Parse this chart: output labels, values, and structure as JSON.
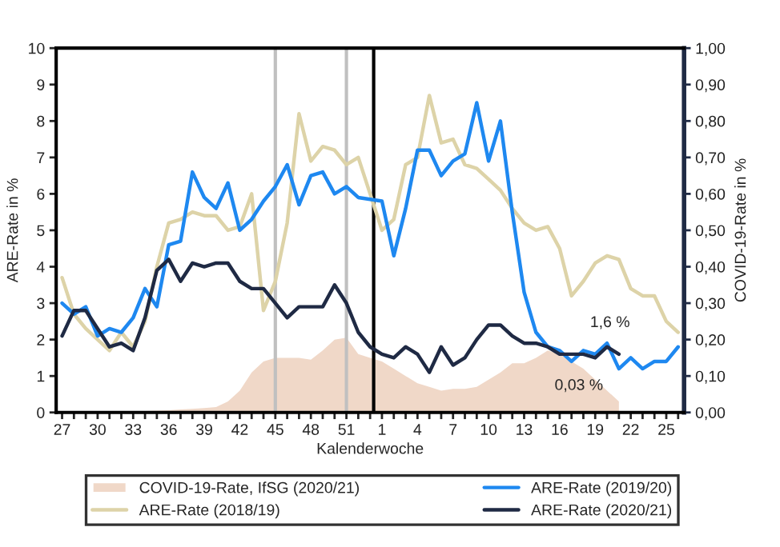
{
  "chart_data": {
    "type": "line",
    "categories": [
      "27",
      null,
      null,
      "30",
      null,
      null,
      "33",
      null,
      null,
      "36",
      null,
      null,
      "39",
      null,
      null,
      "42",
      null,
      null,
      "45",
      null,
      null,
      "48",
      null,
      null,
      "51",
      null,
      null,
      "1",
      null,
      null,
      "4",
      null,
      null,
      "7",
      null,
      null,
      "10",
      null,
      null,
      "13",
      null,
      null,
      "16",
      null,
      null,
      "19",
      null,
      null,
      "22",
      null,
      null,
      "25",
      null
    ],
    "xlabel": "Kalenderwoche",
    "ylabel": "ARE-Rate in %",
    "y2label": "COVID-19-Rate in %",
    "ylim": [
      0,
      10
    ],
    "yticks": [
      0,
      1,
      2,
      3,
      4,
      5,
      6,
      7,
      8,
      9,
      10
    ],
    "y2lim": [
      0,
      1
    ],
    "y2ticks": [
      {
        "value": 0,
        "label": "0,00"
      },
      {
        "value": 0.1,
        "label": "0,10"
      },
      {
        "value": 0.2,
        "label": "0,20"
      },
      {
        "value": 0.3,
        "label": "0,30"
      },
      {
        "value": 0.4,
        "label": "0,40"
      },
      {
        "value": 0.5,
        "label": "0,50"
      },
      {
        "value": 0.6,
        "label": "0,60"
      },
      {
        "value": 0.7,
        "label": "0,70"
      },
      {
        "value": 0.8,
        "label": "0,80"
      },
      {
        "value": 0.9,
        "label": "0,90"
      },
      {
        "value": 1,
        "label": "1,00"
      }
    ],
    "series": [
      {
        "name": "COVID-19-Rate, IfSG (2020/21)",
        "type": "area",
        "axis": "y2",
        "color": "#f0d8c8",
        "values": [
          0.0,
          0.0,
          0.0,
          0.0,
          0.0,
          0.002,
          0.003,
          0.004,
          0.005,
          0.006,
          0.008,
          0.01,
          0.012,
          0.015,
          0.03,
          0.06,
          0.11,
          0.14,
          0.15,
          0.15,
          0.15,
          0.145,
          0.17,
          0.2,
          0.205,
          0.16,
          0.15,
          0.14,
          0.12,
          0.1,
          0.08,
          0.07,
          0.06,
          0.065,
          0.065,
          0.07,
          0.09,
          0.11,
          0.135,
          0.135,
          0.15,
          0.17,
          0.16,
          0.14,
          0.12,
          0.09,
          0.06,
          0.03,
          null,
          null,
          null,
          null,
          null
        ]
      },
      {
        "name": "ARE-Rate (2018/19)",
        "color": "#ddd3a8",
        "values": [
          3.7,
          2.7,
          2.3,
          2.0,
          1.7,
          2.2,
          1.8,
          2.5,
          4.0,
          5.2,
          5.3,
          5.5,
          5.4,
          5.4,
          5.0,
          5.1,
          6.0,
          2.8,
          3.6,
          5.2,
          8.2,
          6.9,
          7.3,
          7.2,
          6.8,
          7.0,
          6.0,
          5.0,
          5.3,
          6.8,
          7.0,
          8.7,
          7.4,
          7.5,
          6.8,
          6.7,
          6.4,
          6.1,
          5.6,
          5.2,
          5.0,
          5.1,
          4.5,
          3.2,
          3.6,
          4.1,
          4.3,
          4.2,
          3.4,
          3.2,
          3.2,
          2.5,
          2.2
        ]
      },
      {
        "name": "ARE-Rate (2019/20)",
        "color": "#1e88f0",
        "values": [
          3.0,
          2.7,
          2.9,
          2.1,
          2.3,
          2.2,
          2.6,
          3.4,
          2.9,
          4.6,
          4.7,
          6.6,
          5.9,
          5.6,
          6.3,
          5.0,
          5.3,
          5.8,
          6.2,
          6.8,
          5.7,
          6.5,
          6.6,
          6.0,
          6.2,
          5.9,
          5.85,
          5.8,
          4.3,
          5.6,
          7.2,
          7.2,
          6.5,
          6.9,
          7.1,
          8.5,
          6.9,
          8.0,
          5.5,
          3.3,
          2.2,
          1.8,
          1.7,
          1.4,
          1.7,
          1.6,
          1.9,
          1.2,
          1.5,
          1.2,
          1.4,
          1.4,
          1.8
        ]
      },
      {
        "name": "ARE-Rate (2020/21)",
        "color": "#1f2a44",
        "values": [
          2.1,
          2.8,
          2.8,
          2.3,
          1.8,
          1.9,
          1.7,
          2.6,
          3.9,
          4.2,
          3.6,
          4.1,
          4.0,
          4.1,
          4.1,
          3.6,
          3.4,
          3.4,
          3.0,
          2.6,
          2.9,
          2.9,
          2.9,
          3.5,
          3.0,
          2.2,
          1.8,
          1.6,
          1.5,
          1.8,
          1.6,
          1.1,
          1.8,
          1.3,
          1.5,
          2.0,
          2.4,
          2.4,
          2.1,
          1.9,
          1.9,
          1.8,
          1.6,
          1.6,
          1.6,
          1.5,
          1.8,
          1.6,
          null,
          null,
          null,
          null,
          null
        ]
      }
    ],
    "ref_lines": [
      {
        "axis": "x",
        "value": "45",
        "color": "#c0c0c0"
      },
      {
        "axis": "x",
        "value": "51",
        "color": "#c0c0c0"
      }
    ],
    "annotations": [
      "1,6 %",
      "0,03 %"
    ],
    "legend": "bottom",
    "grid": false,
    "line_style": "solid",
    "marker": "none"
  }
}
